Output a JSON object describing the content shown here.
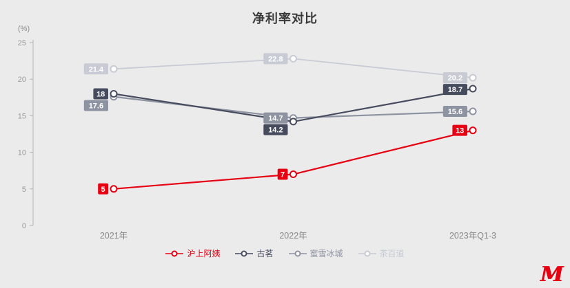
{
  "title": "净利率对比",
  "unit_label": "(%)",
  "logo_text": "M",
  "colors": {
    "background": "#ebebeb",
    "title": "#3a3a3a",
    "axis": "#b5b5b5",
    "tick_label": "#999999",
    "category_label": "#888888",
    "label_text": "#ffffff"
  },
  "chart_data": {
    "type": "line",
    "categories": [
      "2021年",
      "2022年",
      "2023年Q1-3"
    ],
    "series": [
      {
        "name": "沪上阿姨",
        "values": [
          5,
          7,
          13
        ],
        "color": "#e60012"
      },
      {
        "name": "古茗",
        "values": [
          18,
          14.2,
          18.7
        ],
        "color": "#474b5e"
      },
      {
        "name": "蜜雪冰城",
        "values": [
          17.6,
          14.7,
          15.6
        ],
        "color": "#8e93a1"
      },
      {
        "name": "茶百道",
        "values": [
          21.4,
          22.8,
          20.2
        ],
        "color": "#c8cbd4"
      }
    ],
    "ylabel": "(%)",
    "ylim": [
      0,
      25
    ],
    "yticks": [
      0,
      5,
      10,
      15,
      20,
      25
    ],
    "grid": false,
    "legend_position": "bottom",
    "marker": "open-circle",
    "data_labels": true
  }
}
